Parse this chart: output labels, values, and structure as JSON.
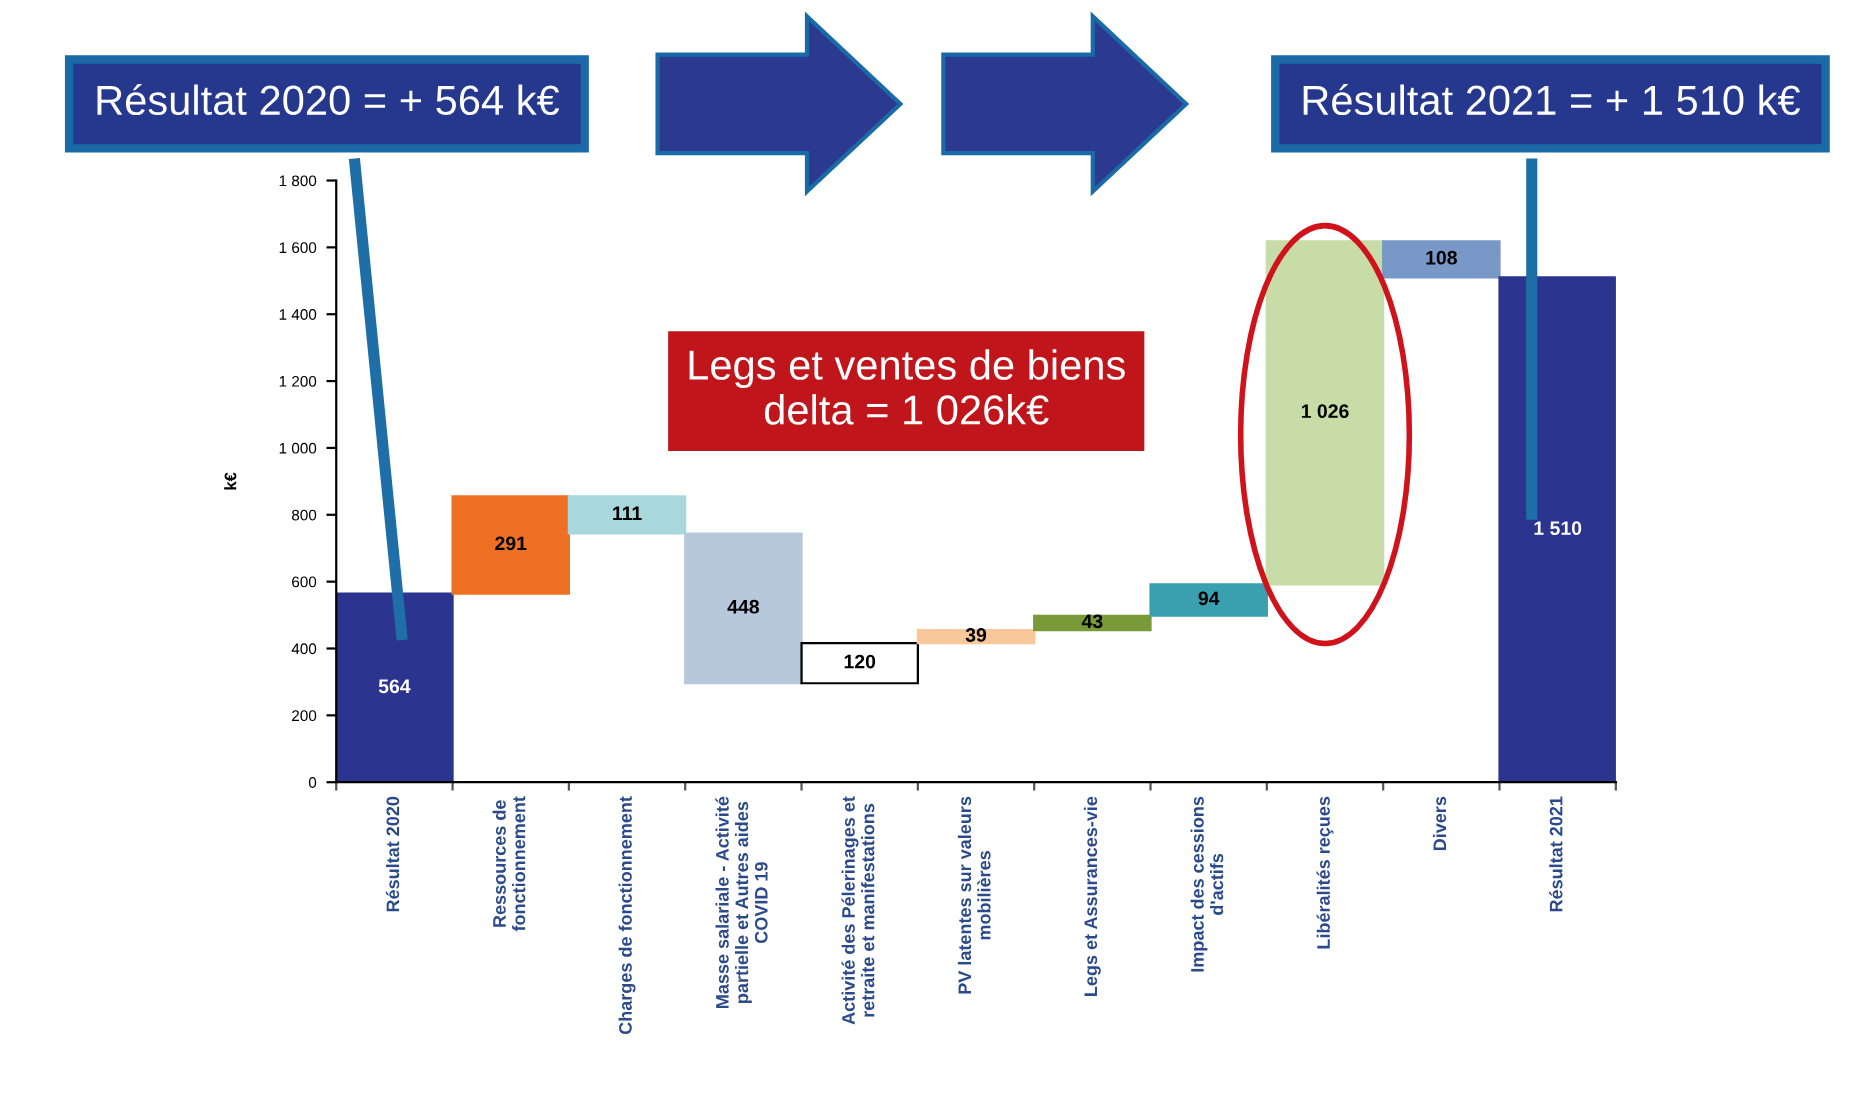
{
  "chart_data": {
    "type": "bar",
    "ylabel": "k€",
    "categories": [
      "Résultat 2020",
      "Ressources de\nfonctionnement",
      "Charges de fonctionnement",
      "Masse salariale - Activité\npartielle et Autres aides\nCOVID 19",
      "Activité des Pélerinages et\nretraite et manifestations",
      "PV latentes sur valeurs\nmobilières",
      "Legs et Assurances-vie",
      "Impact des cessions\nd'actifs",
      "Libéralités reçues",
      "Divers",
      "Résultat 2021"
    ],
    "base": [
      0,
      564,
      855,
      744,
      296,
      416,
      455,
      498,
      592,
      1618,
      0
    ],
    "values": [
      564,
      291,
      -111,
      -448,
      120,
      39,
      43,
      94,
      1026,
      -108,
      1510
    ],
    "value_labels": [
      "564",
      "291",
      "111",
      "448",
      "120",
      "39",
      "43",
      "94",
      "1 026",
      "108",
      "1 510"
    ],
    "colors": [
      "#2b3590",
      "#f07023",
      "#a8d8dc",
      "#b8c8dc",
      "#ffffff",
      "#f8c89a",
      "#7a9a3a",
      "#3aa0b0",
      "#c8dca8",
      "#7898c8",
      "#2b3590"
    ],
    "ylim": [
      0,
      1800
    ],
    "yticks": [
      0,
      200,
      400,
      600,
      800,
      {
        "value": 1000,
        "label": "1 000"
      },
      {
        "value": 1200,
        "label": "1 200"
      },
      {
        "value": 1400,
        "label": "1 400"
      },
      {
        "value": 1600,
        "label": "1 600"
      },
      {
        "value": 1800,
        "label": "1 800"
      }
    ],
    "annotations": [
      "Résultat 2020 = + 564 k€",
      "Résultat 2021 = + 1 510 k€",
      "Legs et ventes de biens\ndelta = 1 026k€"
    ]
  }
}
